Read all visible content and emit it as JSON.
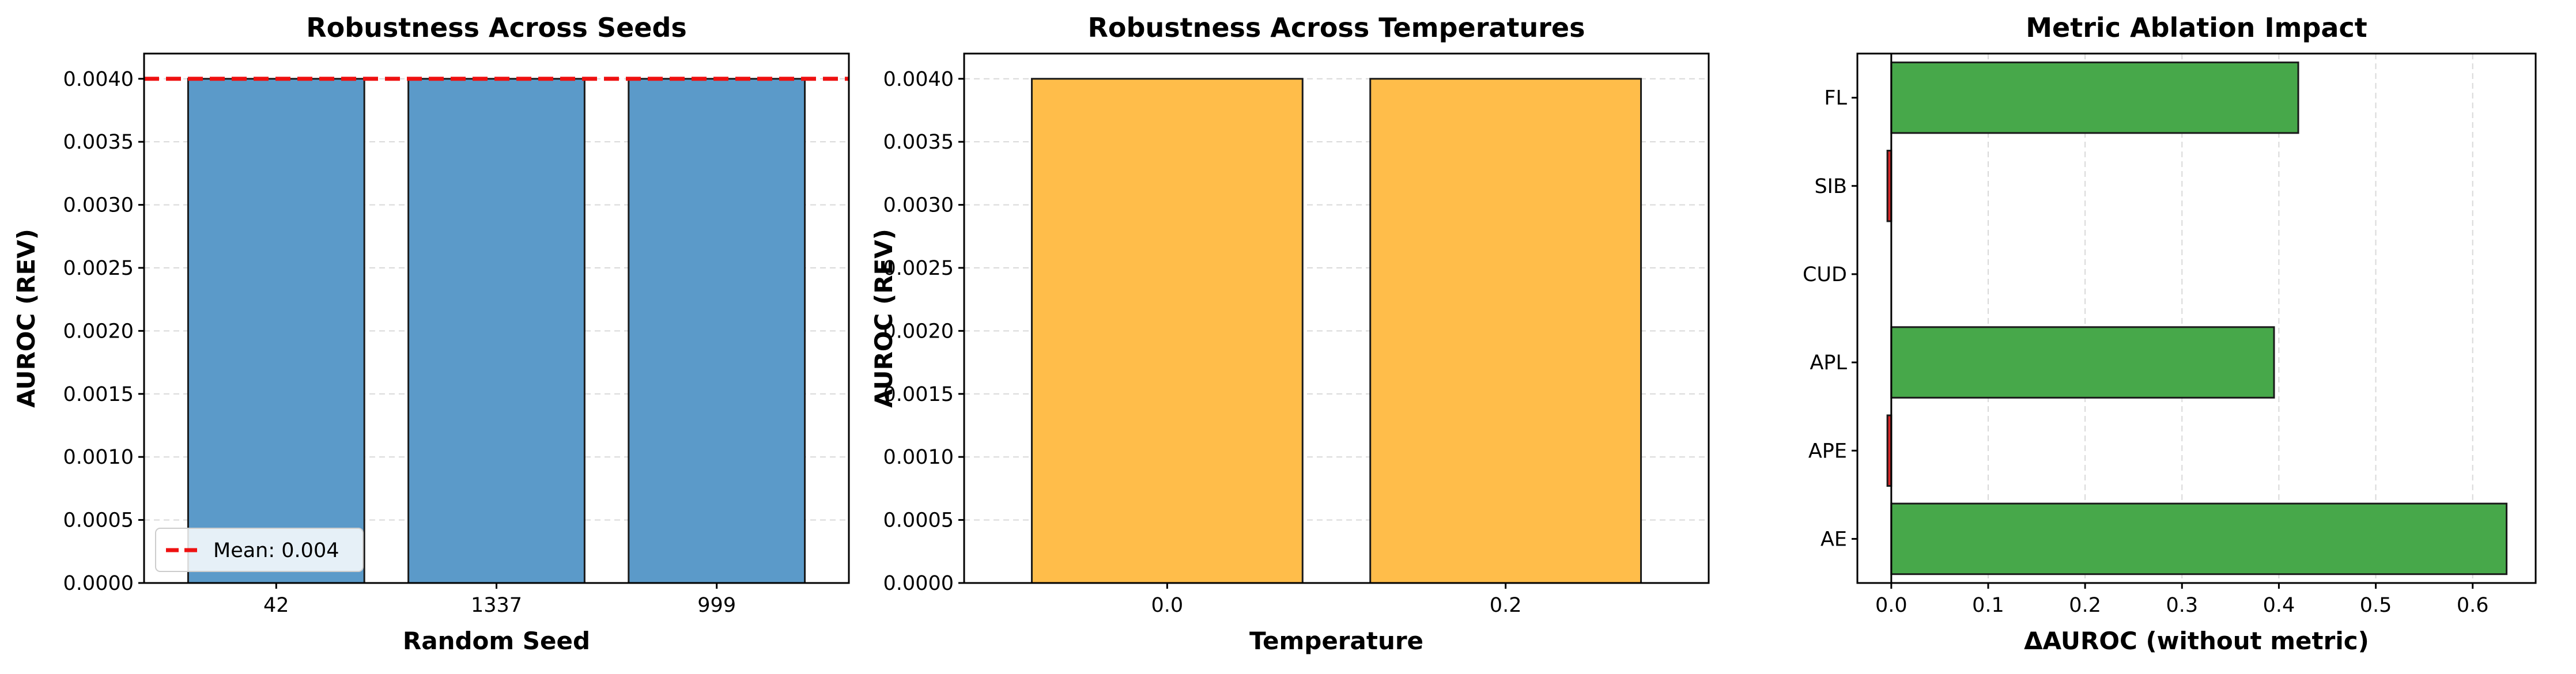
{
  "colors": {
    "seed_bar": "#5b9ac9",
    "temp_bar": "#ffbd4a",
    "ablation_pos": "#47a84a",
    "ablation_neg": "#d62728",
    "mean_line": "#ee1111",
    "edge": "#1a1a1a",
    "grid": "#d9d9d9"
  },
  "chart_data": [
    {
      "type": "bar",
      "title": "Robustness Across Seeds",
      "xlabel": "Random Seed",
      "ylabel": "AUROC (REV)",
      "categories": [
        "42",
        "1337",
        "999"
      ],
      "values": [
        0.004,
        0.004,
        0.004
      ],
      "ylim": [
        0,
        0.0042
      ],
      "yticks": [
        "0.0000",
        "0.0005",
        "0.0010",
        "0.0015",
        "0.0020",
        "0.0025",
        "0.0030",
        "0.0035",
        "0.0040"
      ],
      "ytick_values": [
        0,
        0.0005,
        0.001,
        0.0015,
        0.002,
        0.0025,
        0.003,
        0.0035,
        0.004
      ],
      "reference_line": {
        "value": 0.004,
        "label": "Mean: 0.004"
      },
      "legend": "lower-left",
      "grid": "y-dashed"
    },
    {
      "type": "bar",
      "title": "Robustness Across Temperatures",
      "xlabel": "Temperature",
      "ylabel": "AUROC (REV)",
      "categories": [
        "0.0",
        "0.2"
      ],
      "values": [
        0.004,
        0.004
      ],
      "ylim": [
        0,
        0.0042
      ],
      "yticks": [
        "0.0000",
        "0.0005",
        "0.0010",
        "0.0015",
        "0.0020",
        "0.0025",
        "0.0030",
        "0.0035",
        "0.0040"
      ],
      "ytick_values": [
        0,
        0.0005,
        0.001,
        0.0015,
        0.002,
        0.0025,
        0.003,
        0.0035,
        0.004
      ],
      "grid": "y-dashed"
    },
    {
      "type": "bar",
      "orientation": "horizontal",
      "title": "Metric Ablation Impact",
      "xlabel": "ΔAUROC (without metric)",
      "ylabel": "",
      "categories": [
        "AE",
        "APE",
        "APL",
        "CUD",
        "SIB",
        "FL"
      ],
      "values": [
        0.635,
        -0.004,
        0.395,
        0.0,
        -0.004,
        0.42
      ],
      "xlim": [
        -0.035,
        0.665
      ],
      "xticks": [
        "0.0",
        "0.1",
        "0.2",
        "0.3",
        "0.4",
        "0.5",
        "0.6"
      ],
      "xtick_values": [
        0,
        0.1,
        0.2,
        0.3,
        0.4,
        0.5,
        0.6
      ],
      "reference_line": {
        "value": 0
      },
      "grid": "x-dashed"
    }
  ]
}
